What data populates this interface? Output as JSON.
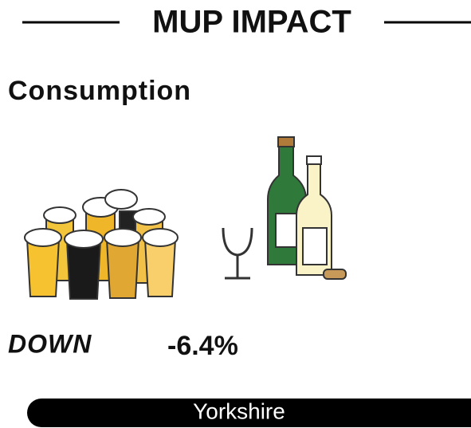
{
  "header": {
    "title": "MUP IMPACT"
  },
  "section": {
    "title": "Consumption",
    "direction": "DOWN",
    "change": "-6.4%",
    "region": "Yorkshire"
  }
}
